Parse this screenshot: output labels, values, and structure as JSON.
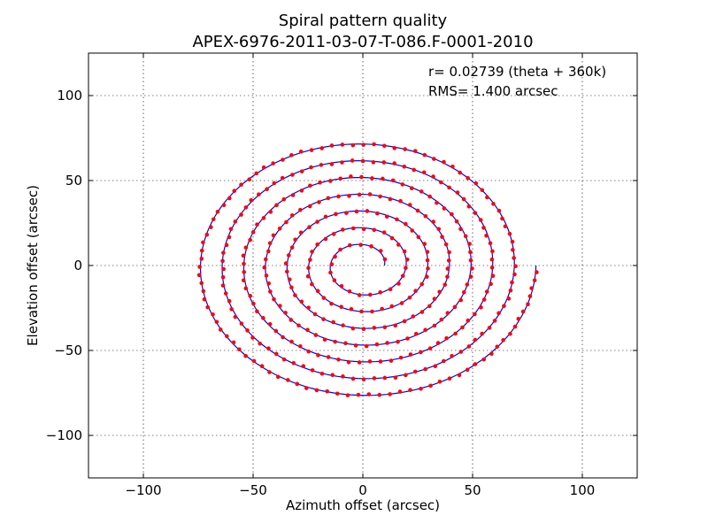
{
  "chart_data": {
    "type": "scatter",
    "title": "Spiral pattern quality",
    "subtitle": "APEX-6976-2011-03-07-T-086.F-0001-2010",
    "xlabel": "Azimuth offset (arcsec)",
    "ylabel": "Elevation offset (arcsec)",
    "xlim": [
      -125,
      125
    ],
    "ylim": [
      -125,
      125
    ],
    "xticks": [
      -100,
      -50,
      0,
      50,
      100
    ],
    "yticks": [
      -100,
      -50,
      0,
      50,
      100
    ],
    "xtick_labels": [
      "−100",
      "−50",
      "0",
      "50",
      "100"
    ],
    "ytick_labels": [
      "−100",
      "−50",
      "0",
      "50",
      "100"
    ],
    "grid": true,
    "annotations": [
      "r= 0.02739 (theta + 360k)",
      "RMS= 1.400 arcsec"
    ],
    "series": [
      {
        "kind": "fitted spiral (line)",
        "color": "#0000ff",
        "equation": {
          "a": 0.02739,
          "k": 360,
          "theta_start_deg": 360,
          "theta_end_deg": 2880,
          "sense": "counter-clockwise"
        }
      },
      {
        "kind": "measured positions (points)",
        "color": "#ff0000",
        "theta_start_deg": 380,
        "theta_end_deg": 2880,
        "point_spacing_arcsec": 4.8,
        "rms_arcsec": 1.4
      }
    ]
  }
}
